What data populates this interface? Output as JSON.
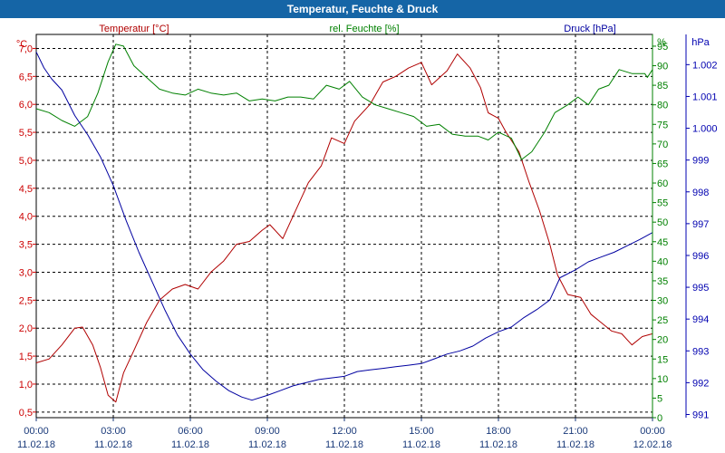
{
  "window": {
    "title": "Temperatur, Feuchte & Druck"
  },
  "chart_data": {
    "type": "line",
    "title": "Temperatur, Feuchte & Druck",
    "xlabel": "",
    "x_ticks": [
      {
        "t": 0,
        "time": "00:00",
        "date": "11.02.18"
      },
      {
        "t": 3,
        "time": "03:00",
        "date": "11.02.18"
      },
      {
        "t": 6,
        "time": "06:00",
        "date": "11.02.18"
      },
      {
        "t": 9,
        "time": "09:00",
        "date": "11.02.18"
      },
      {
        "t": 12,
        "time": "12:00",
        "date": "11.02.18"
      },
      {
        "t": 15,
        "time": "15:00",
        "date": "11.02.18"
      },
      {
        "t": 18,
        "time": "18:00",
        "date": "11.02.18"
      },
      {
        "t": 21,
        "time": "21:00",
        "date": "11.02.18"
      },
      {
        "t": 24,
        "time": "00:00",
        "date": "12.02.18"
      }
    ],
    "xlim": [
      0,
      24
    ],
    "axes": {
      "temperature": {
        "label": "°C",
        "lim": [
          0.4,
          7.25
        ],
        "ticks": [
          "0,5",
          "1,0",
          "1,5",
          "2,0",
          "2,5",
          "3,0",
          "3,5",
          "4,0",
          "4,5",
          "5,0",
          "5,5",
          "6,0",
          "6,5",
          "7,0"
        ],
        "tick_values": [
          0.5,
          1.0,
          1.5,
          2.0,
          2.5,
          3.0,
          3.5,
          4.0,
          4.5,
          5.0,
          5.5,
          6.0,
          6.5,
          7.0
        ],
        "color": "#cc0000"
      },
      "humidity": {
        "label": "%",
        "lim": [
          0,
          98
        ],
        "ticks": [
          "0",
          "5",
          "10",
          "15",
          "20",
          "25",
          "30",
          "35",
          "40",
          "45",
          "50",
          "55",
          "60",
          "65",
          "70",
          "75",
          "80",
          "85",
          "90",
          "95"
        ],
        "tick_values": [
          0,
          5,
          10,
          15,
          20,
          25,
          30,
          35,
          40,
          45,
          50,
          55,
          60,
          65,
          70,
          75,
          80,
          85,
          90,
          95
        ],
        "color": "#008000"
      },
      "pressure": {
        "label": "hPa",
        "lim": [
          990.9,
          1002.95
        ],
        "ticks": [
          "991",
          "992",
          "993",
          "994",
          "995",
          "996",
          "997",
          "998",
          "999",
          "1.000",
          "1.001",
          "1.002"
        ],
        "tick_values": [
          991,
          992,
          993,
          994,
          995,
          996,
          997,
          998,
          999,
          1000,
          1001,
          1002
        ],
        "color": "#0000b0"
      }
    },
    "series": [
      {
        "name": "Temperatur [°C]",
        "axis": "temperature",
        "color": "#b00000",
        "points": [
          [
            0,
            1.38
          ],
          [
            0.5,
            1.45
          ],
          [
            1.0,
            1.7
          ],
          [
            1.5,
            2.0
          ],
          [
            1.8,
            2.02
          ],
          [
            2.2,
            1.7
          ],
          [
            2.5,
            1.3
          ],
          [
            2.8,
            0.8
          ],
          [
            3.1,
            0.68
          ],
          [
            3.4,
            1.2
          ],
          [
            3.8,
            1.6
          ],
          [
            4.3,
            2.1
          ],
          [
            4.8,
            2.5
          ],
          [
            5.3,
            2.7
          ],
          [
            5.8,
            2.78
          ],
          [
            6.3,
            2.7
          ],
          [
            6.8,
            3.0
          ],
          [
            7.3,
            3.2
          ],
          [
            7.8,
            3.5
          ],
          [
            8.3,
            3.55
          ],
          [
            8.8,
            3.75
          ],
          [
            9.1,
            3.85
          ],
          [
            9.6,
            3.6
          ],
          [
            10.0,
            4.0
          ],
          [
            10.6,
            4.6
          ],
          [
            11.1,
            4.9
          ],
          [
            11.5,
            5.4
          ],
          [
            12.0,
            5.3
          ],
          [
            12.4,
            5.7
          ],
          [
            13.0,
            6.0
          ],
          [
            13.5,
            6.4
          ],
          [
            14.0,
            6.5
          ],
          [
            14.5,
            6.65
          ],
          [
            15.0,
            6.75
          ],
          [
            15.4,
            6.35
          ],
          [
            16.0,
            6.6
          ],
          [
            16.4,
            6.9
          ],
          [
            16.9,
            6.65
          ],
          [
            17.3,
            6.3
          ],
          [
            17.6,
            5.85
          ],
          [
            18.0,
            5.75
          ],
          [
            18.3,
            5.5
          ],
          [
            18.8,
            5.15
          ],
          [
            19.2,
            4.6
          ],
          [
            19.6,
            4.1
          ],
          [
            20.0,
            3.5
          ],
          [
            20.3,
            2.95
          ],
          [
            20.7,
            2.6
          ],
          [
            21.2,
            2.55
          ],
          [
            21.6,
            2.25
          ],
          [
            22.0,
            2.1
          ],
          [
            22.4,
            1.95
          ],
          [
            22.8,
            1.9
          ],
          [
            23.2,
            1.7
          ],
          [
            23.6,
            1.85
          ],
          [
            24,
            1.9
          ]
        ]
      },
      {
        "name": "rel. Feuchte [%]",
        "axis": "humidity",
        "color": "#008000",
        "points": [
          [
            0,
            79
          ],
          [
            0.5,
            78
          ],
          [
            1.0,
            76
          ],
          [
            1.5,
            74.5
          ],
          [
            2.0,
            77
          ],
          [
            2.4,
            83
          ],
          [
            2.8,
            91
          ],
          [
            3.1,
            95.5
          ],
          [
            3.4,
            95
          ],
          [
            3.8,
            90
          ],
          [
            4.3,
            87
          ],
          [
            4.8,
            84
          ],
          [
            5.3,
            83
          ],
          [
            5.8,
            82.5
          ],
          [
            6.3,
            84
          ],
          [
            6.8,
            83
          ],
          [
            7.3,
            82.5
          ],
          [
            7.8,
            83
          ],
          [
            8.3,
            81
          ],
          [
            8.8,
            81.5
          ],
          [
            9.3,
            81
          ],
          [
            9.8,
            82
          ],
          [
            10.3,
            82
          ],
          [
            10.8,
            81.5
          ],
          [
            11.3,
            85
          ],
          [
            11.8,
            84
          ],
          [
            12.2,
            86
          ],
          [
            12.7,
            82
          ],
          [
            13.2,
            80
          ],
          [
            13.7,
            79
          ],
          [
            14.2,
            78
          ],
          [
            14.7,
            77
          ],
          [
            15.2,
            74.5
          ],
          [
            15.7,
            75
          ],
          [
            16.2,
            72.5
          ],
          [
            16.7,
            72
          ],
          [
            17.2,
            72
          ],
          [
            17.6,
            71
          ],
          [
            18.0,
            73
          ],
          [
            18.5,
            71.5
          ],
          [
            18.9,
            66
          ],
          [
            19.3,
            68
          ],
          [
            19.8,
            73
          ],
          [
            20.2,
            78
          ],
          [
            20.7,
            80
          ],
          [
            21.1,
            82
          ],
          [
            21.5,
            80
          ],
          [
            21.9,
            84
          ],
          [
            22.3,
            85
          ],
          [
            22.7,
            89
          ],
          [
            23.2,
            88
          ],
          [
            23.7,
            88
          ],
          [
            23.8,
            87
          ],
          [
            24,
            89
          ]
        ]
      },
      {
        "name": "Druck [hPa]",
        "axis": "pressure",
        "color": "#0000a0",
        "points": [
          [
            0,
            1002.4
          ],
          [
            0.3,
            1001.9
          ],
          [
            0.6,
            1001.55
          ],
          [
            1.0,
            1001.2
          ],
          [
            1.5,
            1000.4
          ],
          [
            2.0,
            999.8
          ],
          [
            2.5,
            999.1
          ],
          [
            3.0,
            998.2
          ],
          [
            3.5,
            997.1
          ],
          [
            4.0,
            996.1
          ],
          [
            4.5,
            995.2
          ],
          [
            5.0,
            994.3
          ],
          [
            5.5,
            993.5
          ],
          [
            6.0,
            992.9
          ],
          [
            6.5,
            992.4
          ],
          [
            7.0,
            992.05
          ],
          [
            7.5,
            991.75
          ],
          [
            8.0,
            991.55
          ],
          [
            8.4,
            991.45
          ],
          [
            9.0,
            991.6
          ],
          [
            9.5,
            991.75
          ],
          [
            10.0,
            991.9
          ],
          [
            10.5,
            992.0
          ],
          [
            11.0,
            992.1
          ],
          [
            11.5,
            992.15
          ],
          [
            12.0,
            992.2
          ],
          [
            12.5,
            992.35
          ],
          [
            13.0,
            992.4
          ],
          [
            13.5,
            992.45
          ],
          [
            14.0,
            992.5
          ],
          [
            14.5,
            992.55
          ],
          [
            15.0,
            992.6
          ],
          [
            15.5,
            992.75
          ],
          [
            16.0,
            992.9
          ],
          [
            16.5,
            993.0
          ],
          [
            17.0,
            993.15
          ],
          [
            17.5,
            993.4
          ],
          [
            18.0,
            993.6
          ],
          [
            18.5,
            993.75
          ],
          [
            19.0,
            994.05
          ],
          [
            19.5,
            994.3
          ],
          [
            20.0,
            994.6
          ],
          [
            20.4,
            995.3
          ],
          [
            21.0,
            995.55
          ],
          [
            21.5,
            995.8
          ],
          [
            22.0,
            995.95
          ],
          [
            22.5,
            996.1
          ],
          [
            23.0,
            996.3
          ],
          [
            23.5,
            996.5
          ],
          [
            24,
            996.72
          ]
        ]
      }
    ],
    "legend": [
      "Temperatur [°C]",
      "rel. Feuchte [%]",
      "Druck [hPa]"
    ],
    "grid": true
  }
}
